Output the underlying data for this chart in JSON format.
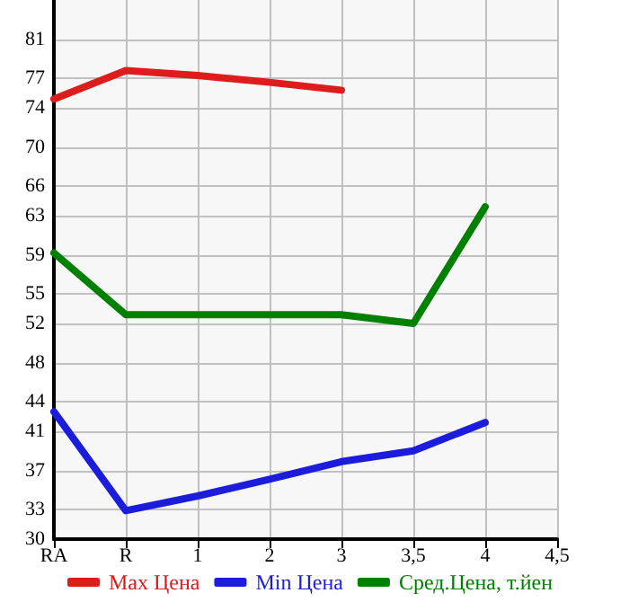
{
  "chart_data": {
    "type": "line",
    "categories": [
      "RA",
      "R",
      "1",
      "2",
      "3",
      "3,5",
      "4",
      "4,5"
    ],
    "series": [
      {
        "name": "Max Цена",
        "color": "#dd1c1c",
        "values": [
          74.9,
          77.8,
          77.3,
          76.6,
          75.8,
          null,
          null,
          null
        ]
      },
      {
        "name": "Min Цена",
        "color": "#1c1cdd",
        "values": [
          43.0,
          32.9,
          34.4,
          36.1,
          37.9,
          39.0,
          41.9,
          null
        ]
      },
      {
        "name": "Сред.Цена, т.йен",
        "color": "#008000",
        "values": [
          59.2,
          52.9,
          52.9,
          52.9,
          52.9,
          52.0,
          63.9,
          null
        ]
      }
    ],
    "ylim": [
      30,
      85
    ],
    "yticks": [
      30,
      33,
      37,
      41,
      44,
      48,
      52,
      55,
      59,
      63,
      66,
      70,
      74,
      77,
      81
    ],
    "grid": true,
    "legend": "bottom",
    "marker": "none",
    "line_style": "solid"
  }
}
